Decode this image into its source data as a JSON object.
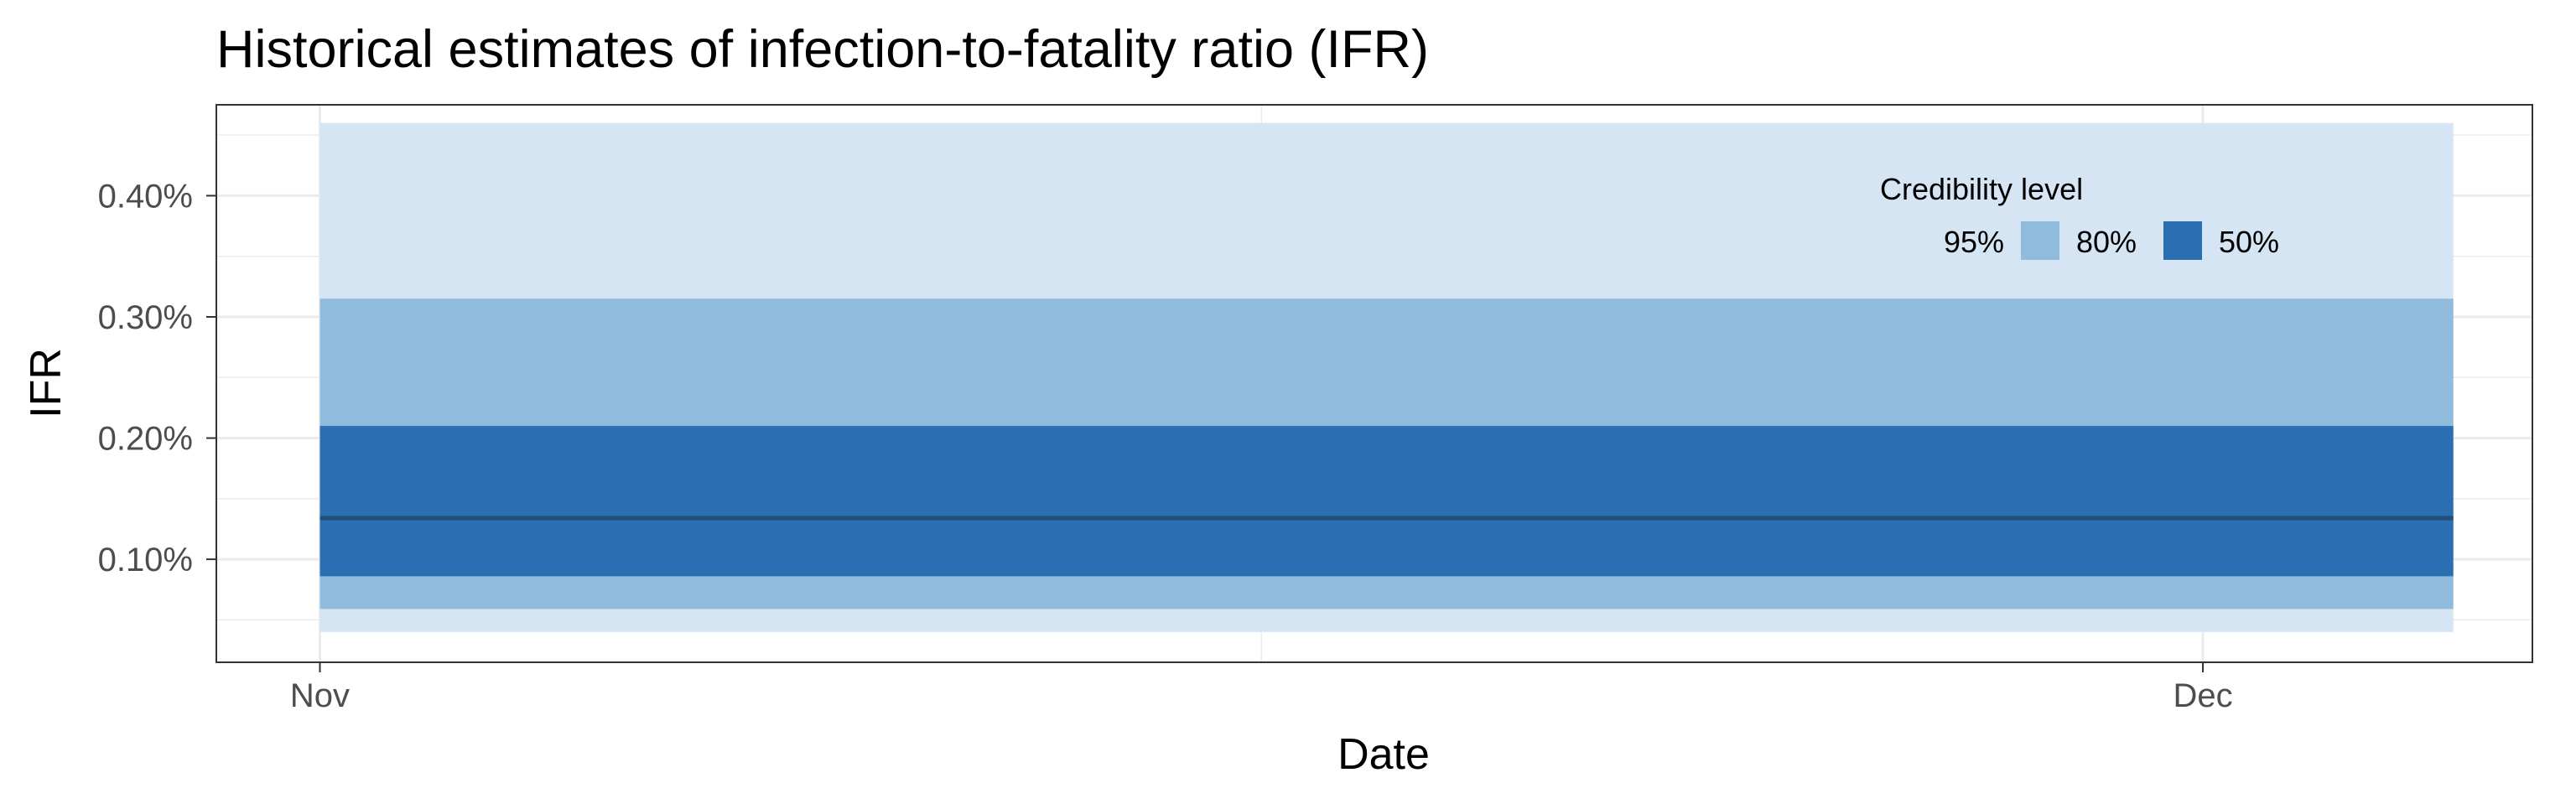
{
  "chart_data": {
    "type": "area",
    "title": "Historical estimates of infection-to-fatality ratio (IFR)",
    "xlabel": "Date",
    "ylabel": "IFR",
    "x_ticks": [
      "Nov",
      "Dec"
    ],
    "y_ticks": [
      "0.10%",
      "0.20%",
      "0.30%",
      "0.40%"
    ],
    "y_tick_values": [
      0.1,
      0.2,
      0.3,
      0.4
    ],
    "ylim": [
      0.015,
      0.475
    ],
    "x_start_label": "Nov",
    "x_end_label": "Dec",
    "x_range_fraction": [
      0.0,
      1.133
    ],
    "x_domain_fraction": [
      -0.055,
      1.175
    ],
    "median": 0.134,
    "bands": [
      {
        "name": "95%",
        "lower": 0.04,
        "upper": 0.46,
        "color": "#d6e5f4"
      },
      {
        "name": "80%",
        "lower": 0.059,
        "upper": 0.315,
        "color": "#8fbcdc"
      },
      {
        "name": "50%",
        "lower": 0.086,
        "upper": 0.21,
        "color": "#2a6fb1"
      }
    ],
    "median_color": "#234e77",
    "grid": true,
    "legend": {
      "title": "Credibility level",
      "placement": "top-right",
      "items": [
        "95%",
        "80%",
        "50%"
      ]
    }
  }
}
